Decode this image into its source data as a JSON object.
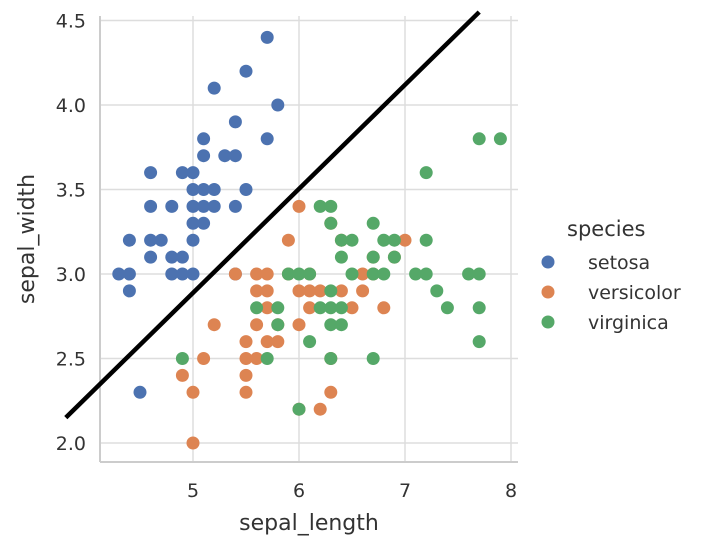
{
  "chart_data": {
    "type": "scatter",
    "title": "",
    "xlabel": "sepal_length",
    "ylabel": "sepal_width",
    "xlim": [
      4.1,
      8.1
    ],
    "ylim": [
      1.9,
      4.5
    ],
    "x_ticks": [
      5,
      6,
      7,
      8
    ],
    "y_ticks": [
      "2.0",
      "2.5",
      "3.0",
      "3.5",
      "4.0",
      "4.5"
    ],
    "grid": true,
    "legend": {
      "title": "species",
      "position": "right"
    },
    "series": [
      {
        "name": "setosa",
        "color": "#4c72b0",
        "points": [
          [
            4.3,
            3.0
          ],
          [
            4.4,
            3.0
          ],
          [
            4.4,
            2.9
          ],
          [
            4.4,
            3.2
          ],
          [
            4.5,
            2.3
          ],
          [
            4.6,
            3.6
          ],
          [
            4.6,
            3.4
          ],
          [
            4.6,
            3.1
          ],
          [
            4.6,
            3.2
          ],
          [
            4.7,
            3.2
          ],
          [
            4.8,
            3.4
          ],
          [
            4.8,
            3.1
          ],
          [
            4.8,
            3.0
          ],
          [
            4.9,
            3.1
          ],
          [
            4.9,
            3.0
          ],
          [
            4.9,
            3.6
          ],
          [
            5.0,
            3.6
          ],
          [
            5.0,
            3.4
          ],
          [
            5.0,
            3.5
          ],
          [
            5.0,
            3.3
          ],
          [
            5.0,
            3.2
          ],
          [
            5.0,
            3.0
          ],
          [
            5.1,
            3.5
          ],
          [
            5.1,
            3.8
          ],
          [
            5.1,
            3.7
          ],
          [
            5.1,
            3.3
          ],
          [
            5.1,
            3.4
          ],
          [
            5.2,
            4.1
          ],
          [
            5.2,
            3.5
          ],
          [
            5.2,
            3.4
          ],
          [
            5.3,
            3.7
          ],
          [
            5.4,
            3.9
          ],
          [
            5.4,
            3.7
          ],
          [
            5.4,
            3.4
          ],
          [
            5.4,
            3.0
          ],
          [
            5.5,
            4.2
          ],
          [
            5.5,
            3.5
          ],
          [
            5.7,
            4.4
          ],
          [
            5.7,
            3.8
          ],
          [
            5.8,
            4.0
          ]
        ]
      },
      {
        "name": "versicolor",
        "color": "#dd8452",
        "points": [
          [
            4.9,
            2.4
          ],
          [
            5.0,
            2.3
          ],
          [
            5.0,
            2.0
          ],
          [
            5.1,
            2.5
          ],
          [
            5.2,
            2.7
          ],
          [
            5.4,
            3.0
          ],
          [
            5.5,
            2.5
          ],
          [
            5.5,
            2.4
          ],
          [
            5.5,
            2.6
          ],
          [
            5.5,
            2.3
          ],
          [
            5.6,
            2.9
          ],
          [
            5.6,
            3.0
          ],
          [
            5.6,
            2.7
          ],
          [
            5.6,
            2.5
          ],
          [
            5.7,
            2.8
          ],
          [
            5.7,
            2.9
          ],
          [
            5.7,
            3.0
          ],
          [
            5.7,
            2.6
          ],
          [
            5.8,
            2.7
          ],
          [
            5.8,
            2.6
          ],
          [
            5.9,
            3.0
          ],
          [
            5.9,
            3.2
          ],
          [
            6.0,
            3.4
          ],
          [
            6.0,
            2.9
          ],
          [
            6.0,
            2.2
          ],
          [
            6.0,
            2.7
          ],
          [
            6.1,
            2.9
          ],
          [
            6.1,
            2.8
          ],
          [
            6.1,
            3.0
          ],
          [
            6.2,
            2.2
          ],
          [
            6.2,
            2.9
          ],
          [
            6.3,
            3.3
          ],
          [
            6.3,
            2.5
          ],
          [
            6.3,
            2.3
          ],
          [
            6.4,
            3.2
          ],
          [
            6.4,
            2.9
          ],
          [
            6.5,
            2.8
          ],
          [
            6.6,
            2.9
          ],
          [
            6.6,
            3.0
          ],
          [
            6.7,
            3.1
          ],
          [
            6.7,
            3.0
          ],
          [
            6.8,
            2.8
          ],
          [
            6.9,
            3.1
          ],
          [
            7.0,
            3.2
          ]
        ]
      },
      {
        "name": "virginica",
        "color": "#55a868",
        "points": [
          [
            4.9,
            2.5
          ],
          [
            5.6,
            2.8
          ],
          [
            5.7,
            2.5
          ],
          [
            5.8,
            2.8
          ],
          [
            5.8,
            2.7
          ],
          [
            5.9,
            3.0
          ],
          [
            6.0,
            2.2
          ],
          [
            6.0,
            3.0
          ],
          [
            6.1,
            3.0
          ],
          [
            6.1,
            2.6
          ],
          [
            6.2,
            3.4
          ],
          [
            6.2,
            2.8
          ],
          [
            6.3,
            3.4
          ],
          [
            6.3,
            3.3
          ],
          [
            6.3,
            2.9
          ],
          [
            6.3,
            2.8
          ],
          [
            6.3,
            2.7
          ],
          [
            6.3,
            2.5
          ],
          [
            6.4,
            3.2
          ],
          [
            6.4,
            3.1
          ],
          [
            6.4,
            2.8
          ],
          [
            6.4,
            2.7
          ],
          [
            6.5,
            3.0
          ],
          [
            6.5,
            3.2
          ],
          [
            6.7,
            3.3
          ],
          [
            6.7,
            3.1
          ],
          [
            6.7,
            3.0
          ],
          [
            6.7,
            2.5
          ],
          [
            6.8,
            3.2
          ],
          [
            6.8,
            3.0
          ],
          [
            6.9,
            3.1
          ],
          [
            6.9,
            3.2
          ],
          [
            7.1,
            3.0
          ],
          [
            7.2,
            3.6
          ],
          [
            7.2,
            3.2
          ],
          [
            7.2,
            3.0
          ],
          [
            7.3,
            2.9
          ],
          [
            7.4,
            2.8
          ],
          [
            7.6,
            3.0
          ],
          [
            7.7,
            3.8
          ],
          [
            7.7,
            2.6
          ],
          [
            7.7,
            2.8
          ],
          [
            7.7,
            3.0
          ],
          [
            7.9,
            3.8
          ]
        ]
      }
    ],
    "annotations": [
      {
        "type": "line",
        "color": "#000000",
        "from": [
          3.8,
          2.15
        ],
        "to": [
          7.7,
          4.55
        ]
      }
    ]
  }
}
